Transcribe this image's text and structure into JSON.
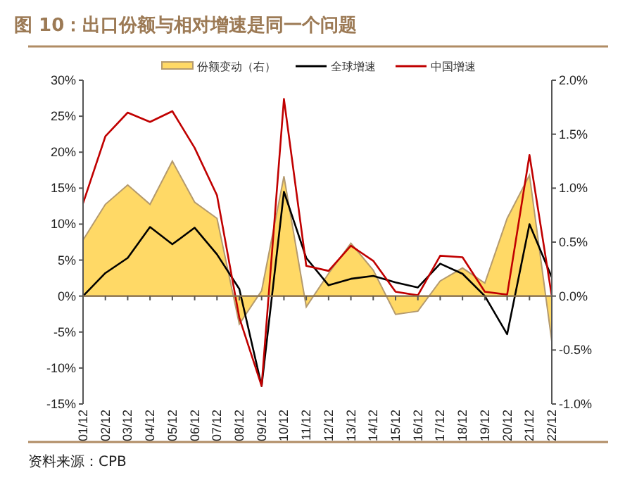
{
  "chart_data": {
    "type": "line",
    "title": "图 10：出口份额与相对增速是同一个问题",
    "categories": [
      "01/12",
      "02/12",
      "03/12",
      "04/12",
      "05/12",
      "06/12",
      "07/12",
      "08/12",
      "09/12",
      "10/12",
      "11/12",
      "12/12",
      "13/12",
      "14/12",
      "15/12",
      "16/12",
      "17/12",
      "18/12",
      "19/12",
      "20/12",
      "21/12",
      "22/12"
    ],
    "series": [
      {
        "name": "份额变动（右）",
        "type": "area",
        "axis": "y2",
        "color": "#ffd966",
        "values": [
          0.52,
          0.85,
          1.03,
          0.85,
          1.25,
          0.87,
          0.72,
          -0.26,
          0.05,
          1.11,
          -0.1,
          0.21,
          0.49,
          0.24,
          -0.17,
          -0.14,
          0.14,
          0.26,
          0.12,
          0.72,
          1.12,
          -0.42
        ]
      },
      {
        "name": "全球增速",
        "type": "line",
        "color": "#000000",
        "values": [
          0,
          3.2,
          5.3,
          9.6,
          7.2,
          9.5,
          5.8,
          1.0,
          -12.5,
          14.5,
          5.3,
          1.5,
          2.4,
          2.8,
          1.9,
          1.2,
          4.5,
          3.1,
          0,
          -5.3,
          10.0,
          2.6
        ]
      },
      {
        "name": "中国增速",
        "type": "line",
        "color": "#c00000",
        "values": [
          12.9,
          22.2,
          25.5,
          24.2,
          25.7,
          20.6,
          14.0,
          -3.0,
          -12.5,
          27.4,
          4.2,
          3.5,
          7.0,
          4.9,
          0.6,
          0.1,
          5.6,
          5.4,
          0.6,
          0.2,
          19.6,
          0.0
        ]
      }
    ],
    "ylim": [
      -15,
      30
    ],
    "yticks": [
      {
        "value": -15,
        "label": "-15%"
      },
      {
        "value": -10,
        "label": "-10%"
      },
      {
        "value": -5,
        "label": "-5%"
      },
      {
        "value": 0,
        "label": "0%"
      },
      {
        "value": 5,
        "label": "5%"
      },
      {
        "value": 10,
        "label": "10%"
      },
      {
        "value": 15,
        "label": "15%"
      },
      {
        "value": 20,
        "label": "20%"
      },
      {
        "value": 25,
        "label": "25%"
      },
      {
        "value": 30,
        "label": "30%"
      }
    ],
    "y2lim": [
      -1.0,
      2.0
    ],
    "y2ticks": [
      {
        "value": -1.0,
        "label": "-1.0%"
      },
      {
        "value": -0.5,
        "label": "-0.5%"
      },
      {
        "value": 0,
        "label": "0.0%"
      },
      {
        "value": 0.5,
        "label": "0.5%"
      },
      {
        "value": 1.0,
        "label": "1.0%"
      },
      {
        "value": 1.5,
        "label": "1.5%"
      },
      {
        "value": 2.0,
        "label": "2.0%"
      }
    ],
    "ref_lines": [
      {
        "axis": "y",
        "value": 0,
        "color": "#8a7350"
      }
    ],
    "grid": false,
    "legend": "top",
    "marker": "none",
    "line_style": "solid",
    "annotations": [
      "资料来源：CPB"
    ]
  }
}
